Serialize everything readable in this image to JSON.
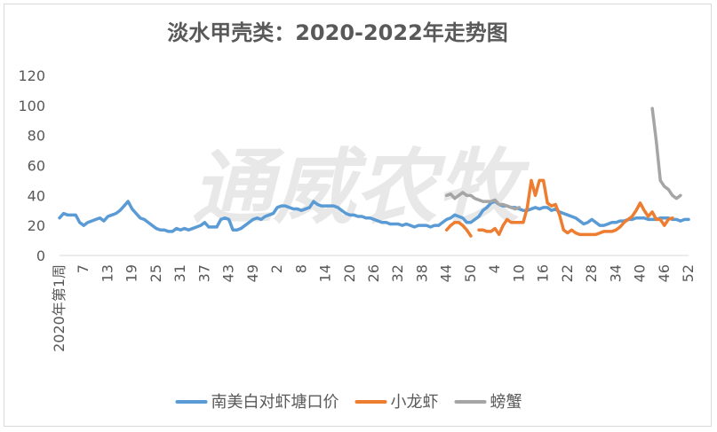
{
  "chart_data": {
    "type": "line",
    "title": "淡水甲壳类：2020-2022年走势图",
    "watermark": "通威农牧",
    "ylim": [
      0,
      120
    ],
    "yticks": [
      0,
      20,
      40,
      60,
      80,
      100,
      120
    ],
    "xticks": [
      "2020年第1周",
      "7",
      "13",
      "19",
      "25",
      "31",
      "37",
      "43",
      "49",
      "2",
      "8",
      "14",
      "20",
      "26",
      "32",
      "38",
      "44",
      "50",
      "4",
      "10",
      "16",
      "22",
      "28",
      "34",
      "40",
      "46",
      "52"
    ],
    "n_points": 157,
    "legend_position": "bottom",
    "grid": false,
    "series": [
      {
        "name": "南美白对虾塘口价",
        "color": "#5b9bd5",
        "start": 0,
        "values": [
          25,
          28,
          27,
          27,
          27,
          22,
          20,
          22,
          23,
          24,
          25,
          23,
          26,
          27,
          28,
          30,
          33,
          36,
          31,
          28,
          25,
          24,
          22,
          20,
          18,
          17,
          17,
          16,
          16,
          18,
          17,
          18,
          17,
          18,
          19,
          20,
          22,
          19,
          19,
          19,
          24,
          25,
          24,
          17,
          17,
          18,
          20,
          22,
          24,
          25,
          24,
          26,
          27,
          28,
          32,
          33,
          33,
          32,
          31,
          31,
          30,
          31,
          32,
          36,
          34,
          33,
          33,
          33,
          33,
          32,
          30,
          28,
          27,
          27,
          26,
          26,
          25,
          25,
          24,
          23,
          22,
          22,
          21,
          21,
          21,
          20,
          21,
          20,
          19,
          20,
          20,
          20,
          19,
          20,
          20,
          22,
          24,
          25,
          27,
          26,
          25,
          22,
          22,
          24,
          26,
          30,
          32,
          35,
          36,
          34,
          33,
          33,
          32,
          32,
          31,
          30,
          30,
          31,
          32,
          31,
          32,
          32,
          30,
          31,
          29,
          28,
          27,
          26,
          25,
          23,
          21,
          22,
          24,
          22,
          20,
          20,
          21,
          22,
          22,
          23,
          23,
          24,
          24,
          25,
          25,
          25,
          24,
          24,
          24,
          25,
          25,
          25,
          24,
          24,
          23,
          24,
          24
        ]
      },
      {
        "name": "小龙虾",
        "color": "#ed7d31",
        "start": 96,
        "values": [
          17,
          20,
          22,
          22,
          20,
          17,
          13,
          null,
          17,
          17,
          16,
          16,
          18,
          14,
          20,
          24,
          22,
          22,
          22,
          22,
          32,
          50,
          40,
          50,
          50,
          35,
          33,
          34,
          27,
          17,
          15,
          17,
          15,
          14,
          14,
          14,
          14,
          14,
          15,
          16,
          16,
          16,
          17,
          19,
          22,
          24,
          26,
          30,
          35,
          30,
          26,
          29,
          24,
          24,
          20,
          24,
          25
        ]
      },
      {
        "name": "螃蟹",
        "color": "#a5a5a5",
        "start": 96,
        "values": [
          40,
          41,
          38,
          40,
          42,
          40,
          40,
          38,
          37,
          36,
          36,
          36,
          37,
          34,
          34,
          33,
          32,
          31,
          32,
          null,
          null,
          null,
          null,
          null,
          null,
          null,
          null,
          null,
          null,
          null,
          null,
          null,
          null,
          null,
          null,
          null,
          null,
          null,
          null,
          null,
          null,
          null,
          null,
          null,
          null,
          null,
          null,
          null,
          null,
          null,
          null,
          98,
          76,
          50,
          46,
          44,
          40,
          38,
          40
        ]
      }
    ]
  }
}
